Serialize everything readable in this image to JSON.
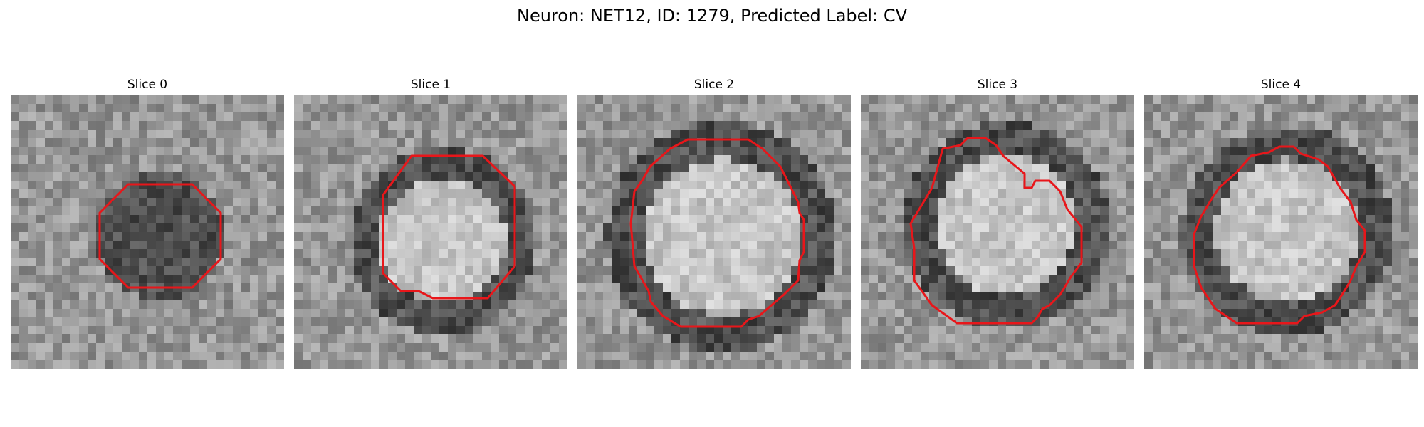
{
  "figure": {
    "title": "Neuron: NET12, ID: 1279, Predicted Label: CV"
  },
  "panels": [
    {
      "title": "Slice 0",
      "blob": "dark",
      "contour": "octagon-small"
    },
    {
      "title": "Slice 1",
      "blob": "ring",
      "contour": "octagon-offset"
    },
    {
      "title": "Slice 2",
      "blob": "ring-bright",
      "contour": "round-large"
    },
    {
      "title": "Slice 3",
      "blob": "ring-bright",
      "contour": "round-notched"
    },
    {
      "title": "Slice 4",
      "blob": "ring-bright",
      "contour": "round-medium"
    }
  ],
  "colors": {
    "contour": "#e8161a",
    "background": "#ffffff"
  }
}
